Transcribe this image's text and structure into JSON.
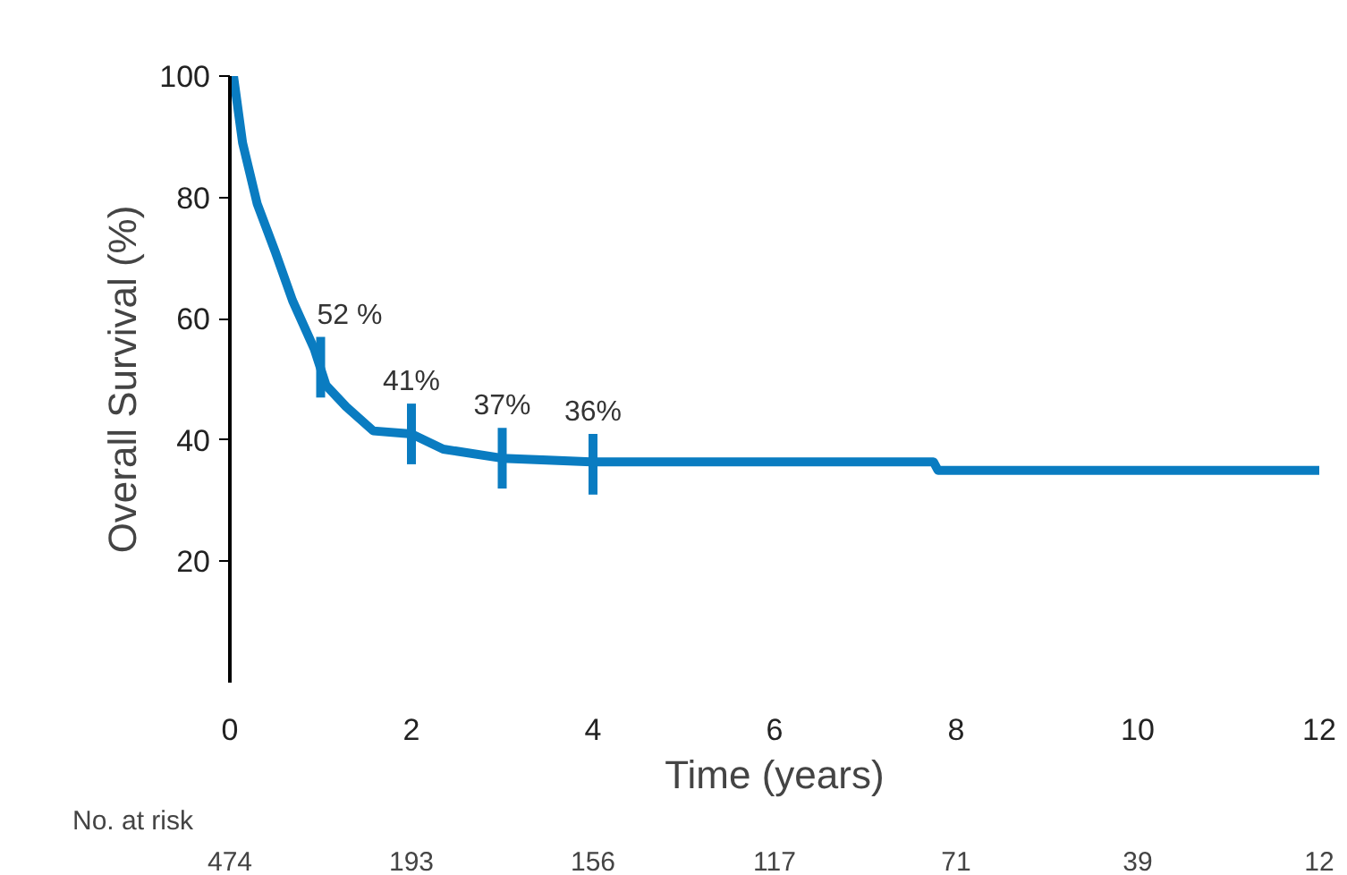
{
  "chart_data": {
    "type": "line",
    "xlabel": "Time (years)",
    "ylabel": "Overall Survival (%)",
    "x": [
      0,
      0.04,
      0.14,
      0.3,
      0.5,
      0.69,
      0.93,
      1.06,
      1.28,
      1.58,
      2,
      2.35,
      3,
      3.98,
      7.75,
      7.8,
      12
    ],
    "series": [
      {
        "color": "#0a7cc1",
        "values": [
          100,
          100,
          89,
          79,
          71,
          63,
          55,
          49,
          45.5,
          41.5,
          41,
          38.5,
          37,
          36.4,
          36.4,
          35,
          35
        ]
      }
    ],
    "xlim": [
      0,
      12
    ],
    "ylim": [
      0,
      100
    ],
    "xticks": [
      0,
      2,
      4,
      6,
      8,
      10,
      12
    ],
    "yticks": [
      20,
      40,
      60,
      80,
      100
    ],
    "grid": false,
    "annotations": [
      {
        "text": "52 %",
        "x": 1,
        "y": 52
      },
      {
        "text": "41%",
        "x": 2,
        "y": 41
      },
      {
        "text": "37%",
        "x": 3,
        "y": 37
      },
      {
        "text": "36%",
        "x": 4,
        "y": 36
      },
      "No. at risk",
      "474",
      "193",
      "156",
      "117",
      "71",
      "39",
      "12"
    ]
  }
}
